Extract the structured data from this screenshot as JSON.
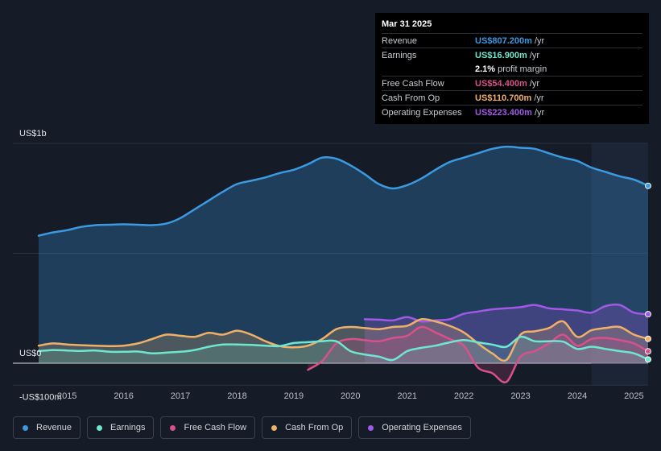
{
  "tooltip": {
    "date": "Mar 31 2025",
    "rows": [
      {
        "label": "Revenue",
        "value": "US$807.200m",
        "unit": "/yr",
        "color": "#3b9ae1"
      },
      {
        "label": "Earnings",
        "value": "US$16.900m",
        "unit": "/yr",
        "color": "#6ee7d0"
      },
      {
        "label": "",
        "value": "2.1%",
        "unit": "profit margin",
        "color": "#ffffff"
      },
      {
        "label": "Free Cash Flow",
        "value": "US$54.400m",
        "unit": "/yr",
        "color": "#d9508a"
      },
      {
        "label": "Cash From Op",
        "value": "US$110.700m",
        "unit": "/yr",
        "color": "#f0b067"
      },
      {
        "label": "Operating Expenses",
        "value": "US$223.400m",
        "unit": "/yr",
        "color": "#a259e8"
      }
    ]
  },
  "legend": [
    {
      "label": "Revenue",
      "color": "#3b9ae1"
    },
    {
      "label": "Earnings",
      "color": "#6ee7d0"
    },
    {
      "label": "Free Cash Flow",
      "color": "#d9508a"
    },
    {
      "label": "Cash From Op",
      "color": "#f0b067"
    },
    {
      "label": "Operating Expenses",
      "color": "#a259e8"
    }
  ],
  "chart_data": {
    "type": "area",
    "y_tick_labels": [
      "US$1b",
      "US$0",
      "-US$100m"
    ],
    "ylim": [
      -100,
      1000
    ],
    "xlim": [
      2014.5,
      2025.25
    ],
    "x_tick_labels": [
      "2015",
      "2016",
      "2017",
      "2018",
      "2019",
      "2020",
      "2021",
      "2022",
      "2023",
      "2024",
      "2025"
    ],
    "forecast_start": 2024.25,
    "series": [
      {
        "name": "Revenue",
        "color": "#3b9ae1",
        "points": [
          [
            2014.5,
            580
          ],
          [
            2014.75,
            595
          ],
          [
            2015.0,
            605
          ],
          [
            2015.25,
            620
          ],
          [
            2015.5,
            628
          ],
          [
            2015.75,
            630
          ],
          [
            2016.0,
            632
          ],
          [
            2016.25,
            630
          ],
          [
            2016.5,
            628
          ],
          [
            2016.75,
            635
          ],
          [
            2017.0,
            660
          ],
          [
            2017.25,
            700
          ],
          [
            2017.5,
            740
          ],
          [
            2017.75,
            780
          ],
          [
            2018.0,
            815
          ],
          [
            2018.25,
            830
          ],
          [
            2018.5,
            845
          ],
          [
            2018.75,
            865
          ],
          [
            2019.0,
            880
          ],
          [
            2019.25,
            905
          ],
          [
            2019.5,
            935
          ],
          [
            2019.75,
            930
          ],
          [
            2020.0,
            900
          ],
          [
            2020.25,
            860
          ],
          [
            2020.5,
            815
          ],
          [
            2020.75,
            795
          ],
          [
            2021.0,
            810
          ],
          [
            2021.25,
            840
          ],
          [
            2021.5,
            880
          ],
          [
            2021.75,
            915
          ],
          [
            2022.0,
            935
          ],
          [
            2022.25,
            955
          ],
          [
            2022.5,
            975
          ],
          [
            2022.75,
            985
          ],
          [
            2023.0,
            980
          ],
          [
            2023.25,
            975
          ],
          [
            2023.5,
            955
          ],
          [
            2023.75,
            935
          ],
          [
            2024.0,
            920
          ],
          [
            2024.25,
            890
          ],
          [
            2024.5,
            870
          ],
          [
            2024.75,
            850
          ],
          [
            2025.0,
            835
          ],
          [
            2025.25,
            807
          ]
        ]
      },
      {
        "name": "Earnings",
        "color": "#6ee7d0",
        "points": [
          [
            2014.5,
            55
          ],
          [
            2014.75,
            60
          ],
          [
            2015.0,
            58
          ],
          [
            2015.25,
            56
          ],
          [
            2015.5,
            58
          ],
          [
            2015.75,
            52
          ],
          [
            2016.0,
            52
          ],
          [
            2016.25,
            53
          ],
          [
            2016.5,
            45
          ],
          [
            2016.75,
            48
          ],
          [
            2017.0,
            52
          ],
          [
            2017.25,
            60
          ],
          [
            2017.5,
            75
          ],
          [
            2017.75,
            85
          ],
          [
            2018.0,
            85
          ],
          [
            2018.25,
            83
          ],
          [
            2018.5,
            80
          ],
          [
            2018.75,
            78
          ],
          [
            2019.0,
            92
          ],
          [
            2019.25,
            96
          ],
          [
            2019.5,
            100
          ],
          [
            2019.75,
            100
          ],
          [
            2020.0,
            55
          ],
          [
            2020.25,
            40
          ],
          [
            2020.5,
            30
          ],
          [
            2020.75,
            15
          ],
          [
            2021.0,
            55
          ],
          [
            2021.25,
            70
          ],
          [
            2021.5,
            80
          ],
          [
            2021.75,
            95
          ],
          [
            2022.0,
            105
          ],
          [
            2022.25,
            95
          ],
          [
            2022.5,
            85
          ],
          [
            2022.75,
            75
          ],
          [
            2023.0,
            120
          ],
          [
            2023.25,
            100
          ],
          [
            2023.5,
            100
          ],
          [
            2023.75,
            98
          ],
          [
            2024.0,
            65
          ],
          [
            2024.25,
            75
          ],
          [
            2024.5,
            65
          ],
          [
            2024.75,
            55
          ],
          [
            2025.0,
            45
          ],
          [
            2025.25,
            17
          ]
        ]
      },
      {
        "name": "Free Cash Flow",
        "color": "#d9508a",
        "points": [
          [
            2019.25,
            -30
          ],
          [
            2019.5,
            10
          ],
          [
            2019.75,
            90
          ],
          [
            2020.0,
            110
          ],
          [
            2020.25,
            105
          ],
          [
            2020.5,
            100
          ],
          [
            2020.75,
            115
          ],
          [
            2021.0,
            125
          ],
          [
            2021.25,
            165
          ],
          [
            2021.5,
            140
          ],
          [
            2021.75,
            110
          ],
          [
            2022.0,
            80
          ],
          [
            2022.25,
            -20
          ],
          [
            2022.5,
            -45
          ],
          [
            2022.75,
            -85
          ],
          [
            2023.0,
            30
          ],
          [
            2023.25,
            55
          ],
          [
            2023.5,
            90
          ],
          [
            2023.75,
            130
          ],
          [
            2024.0,
            80
          ],
          [
            2024.25,
            110
          ],
          [
            2024.5,
            115
          ],
          [
            2024.75,
            105
          ],
          [
            2025.0,
            90
          ],
          [
            2025.25,
            54
          ]
        ]
      },
      {
        "name": "Cash From Op",
        "color": "#f0b067",
        "points": [
          [
            2014.5,
            80
          ],
          [
            2014.75,
            90
          ],
          [
            2015.0,
            85
          ],
          [
            2015.25,
            82
          ],
          [
            2015.5,
            80
          ],
          [
            2015.75,
            78
          ],
          [
            2016.0,
            80
          ],
          [
            2016.25,
            90
          ],
          [
            2016.5,
            110
          ],
          [
            2016.75,
            130
          ],
          [
            2017.0,
            125
          ],
          [
            2017.25,
            120
          ],
          [
            2017.5,
            138
          ],
          [
            2017.75,
            130
          ],
          [
            2018.0,
            148
          ],
          [
            2018.25,
            130
          ],
          [
            2018.5,
            100
          ],
          [
            2018.75,
            78
          ],
          [
            2019.0,
            72
          ],
          [
            2019.25,
            80
          ],
          [
            2019.5,
            110
          ],
          [
            2019.75,
            155
          ],
          [
            2020.0,
            165
          ],
          [
            2020.25,
            160
          ],
          [
            2020.5,
            155
          ],
          [
            2020.75,
            165
          ],
          [
            2021.0,
            170
          ],
          [
            2021.25,
            200
          ],
          [
            2021.5,
            190
          ],
          [
            2021.75,
            170
          ],
          [
            2022.0,
            140
          ],
          [
            2022.25,
            90
          ],
          [
            2022.5,
            45
          ],
          [
            2022.75,
            15
          ],
          [
            2023.0,
            130
          ],
          [
            2023.25,
            145
          ],
          [
            2023.5,
            160
          ],
          [
            2023.75,
            190
          ],
          [
            2024.0,
            120
          ],
          [
            2024.25,
            150
          ],
          [
            2024.5,
            160
          ],
          [
            2024.75,
            165
          ],
          [
            2025.0,
            130
          ],
          [
            2025.25,
            111
          ]
        ]
      },
      {
        "name": "Operating Expenses",
        "color": "#a259e8",
        "points": [
          [
            2020.25,
            200
          ],
          [
            2020.5,
            198
          ],
          [
            2020.75,
            195
          ],
          [
            2021.0,
            210
          ],
          [
            2021.25,
            190
          ],
          [
            2021.5,
            195
          ],
          [
            2021.75,
            200
          ],
          [
            2022.0,
            225
          ],
          [
            2022.25,
            235
          ],
          [
            2022.5,
            245
          ],
          [
            2022.75,
            250
          ],
          [
            2023.0,
            255
          ],
          [
            2023.25,
            265
          ],
          [
            2023.5,
            250
          ],
          [
            2023.75,
            245
          ],
          [
            2024.0,
            240
          ],
          [
            2024.25,
            230
          ],
          [
            2024.5,
            260
          ],
          [
            2024.75,
            265
          ],
          [
            2025.0,
            230
          ],
          [
            2025.25,
            223
          ]
        ]
      }
    ]
  }
}
